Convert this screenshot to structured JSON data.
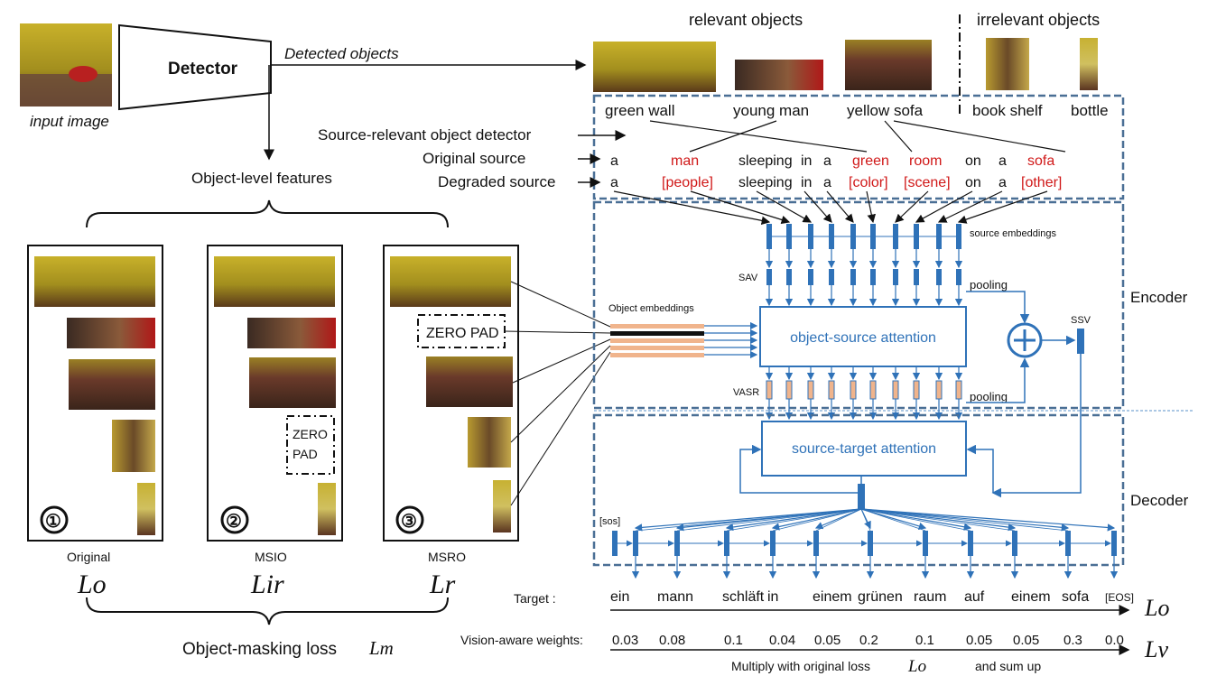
{
  "detector": {
    "box_label": "Detector",
    "input_caption": "input image",
    "detected_label": "Detected objects",
    "features_label": "Object-level features"
  },
  "objects": {
    "relevant_title": "relevant objects",
    "irrelevant_title": "irrelevant objects",
    "labels": [
      "green wall",
      "young man",
      "yellow sofa",
      "book shelf",
      "bottle"
    ]
  },
  "source": {
    "detector_label": "Source-relevant object detector",
    "original_label": "Original source",
    "degraded_label": "Degraded source",
    "original_tokens": [
      "a",
      "man",
      "sleeping",
      "in",
      "a",
      "green",
      "room",
      "on",
      "a",
      "sofa"
    ],
    "degraded_tokens": [
      "a",
      "[people]",
      "sleeping",
      "in",
      "a",
      "[color]",
      "[scene]",
      "on",
      "a",
      "[other]"
    ],
    "highlight_indices": [
      1,
      5,
      6,
      9
    ]
  },
  "encoder": {
    "section_label": "Encoder",
    "source_embeddings": "source embeddings",
    "sav": "SAV",
    "vasr": "VASR",
    "pooling_top": "pooling",
    "pooling_bottom": "pooling",
    "object_embeddings": "Object embeddings",
    "attention": "object-source attention",
    "ssv": "SSV"
  },
  "decoder": {
    "section_label": "Decoder",
    "attention": "source-target attention",
    "sos": "[sos]"
  },
  "panels": [
    {
      "number": "①",
      "name": "Original",
      "loss": "Lo",
      "zero_pad": ""
    },
    {
      "number": "②",
      "name": "MSIO",
      "loss": "Lir",
      "zero_pad_line1": "ZERO",
      "zero_pad_line2": "PAD"
    },
    {
      "number": "③",
      "name": "MSRO",
      "loss": "Lr",
      "zero_pad": "ZERO PAD"
    }
  ],
  "bottom": {
    "object_masking": "Object-masking loss",
    "object_masking_sym": "Lm",
    "target_label": "Target :",
    "target_words": [
      "ein",
      "mann",
      "schläft",
      "in",
      "einem",
      "grünen",
      "raum",
      "auf",
      "einem",
      "sofa",
      "[EOS]"
    ],
    "target_loss": "Lo",
    "weights_label": "Vision-aware weights:",
    "weights": [
      "0.03",
      "0.08",
      "0.1",
      "0.04",
      "0.05",
      "0.2",
      "0.1",
      "0.05",
      "0.05",
      "0.3",
      "0.0"
    ],
    "weights_loss": "Lv",
    "multiply_text": "Multiply with original loss",
    "multiply_sym": "Lo",
    "sum_text": "and sum up"
  },
  "colors": {
    "blue": "#2f72b8",
    "dashed": "#4a6f95",
    "red": "#d01818",
    "salmon": "#f0b48c"
  }
}
